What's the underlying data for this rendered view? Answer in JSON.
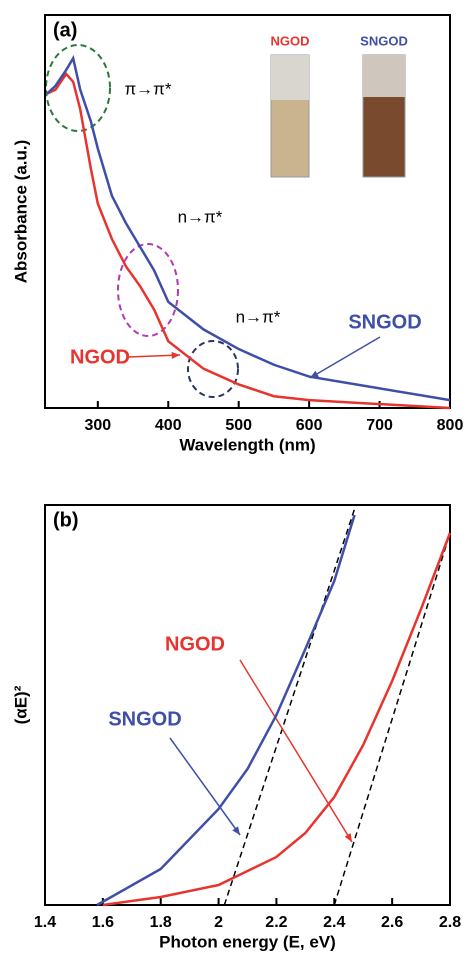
{
  "chart_data": [
    {
      "type": "line",
      "panel": "(a)",
      "x_label": "Wavelength (nm)",
      "y_label": "Absorbance (a.u.)",
      "xlim": [
        225,
        800
      ],
      "ylim": [
        0,
        1
      ],
      "xticks": [
        300,
        400,
        500,
        600,
        700,
        800
      ],
      "annotations": [
        "π→π*",
        "n→π*",
        "n→π*"
      ],
      "series": [
        {
          "name": "NGOD",
          "color": "#e8342f",
          "x": [
            228,
            240,
            255,
            265,
            275,
            290,
            300,
            320,
            340,
            360,
            380,
            400,
            450,
            500,
            550,
            600,
            700,
            800
          ],
          "values": [
            0.8,
            0.81,
            0.85,
            0.83,
            0.76,
            0.61,
            0.52,
            0.43,
            0.36,
            0.31,
            0.25,
            0.17,
            0.1,
            0.06,
            0.03,
            0.02,
            0.01,
            0.0
          ]
        },
        {
          "name": "SNGOD",
          "color": "#3f4fa8",
          "x": [
            228,
            240,
            255,
            265,
            275,
            290,
            300,
            320,
            340,
            360,
            380,
            400,
            450,
            500,
            550,
            600,
            700,
            800
          ],
          "values": [
            0.8,
            0.82,
            0.86,
            0.89,
            0.81,
            0.73,
            0.66,
            0.54,
            0.47,
            0.41,
            0.35,
            0.27,
            0.2,
            0.15,
            0.11,
            0.08,
            0.05,
            0.02
          ]
        }
      ]
    },
    {
      "type": "line",
      "panel": "(b)",
      "x_label": "Photon energy (E, eV)",
      "y_label": "(αE)²",
      "xlim": [
        1.4,
        2.8
      ],
      "ylim": [
        0,
        1
      ],
      "xticks": [
        1.4,
        1.6,
        1.8,
        2,
        2.2,
        2.4,
        2.6,
        2.8
      ],
      "series": [
        {
          "name": "NGOD",
          "color": "#e8342f",
          "x": [
            1.6,
            1.8,
            2.0,
            2.2,
            2.3,
            2.4,
            2.5,
            2.6,
            2.7,
            2.8
          ],
          "values": [
            0.0,
            0.02,
            0.05,
            0.12,
            0.18,
            0.27,
            0.4,
            0.56,
            0.74,
            0.93
          ]
        },
        {
          "name": "SNGOD",
          "color": "#3f4fa8",
          "x": [
            1.58,
            1.8,
            2.0,
            2.1,
            2.2,
            2.3,
            2.4,
            2.47
          ],
          "values": [
            0.0,
            0.09,
            0.24,
            0.34,
            0.475,
            0.64,
            0.81,
            0.975
          ]
        }
      ],
      "fit_lines": [
        {
          "color": "#000000",
          "x": [
            2.02,
            2.47
          ],
          "values": [
            0,
            0.99
          ]
        },
        {
          "color": "#000000",
          "x": [
            2.4,
            2.8
          ],
          "values": [
            0,
            0.93
          ]
        }
      ]
    }
  ]
}
